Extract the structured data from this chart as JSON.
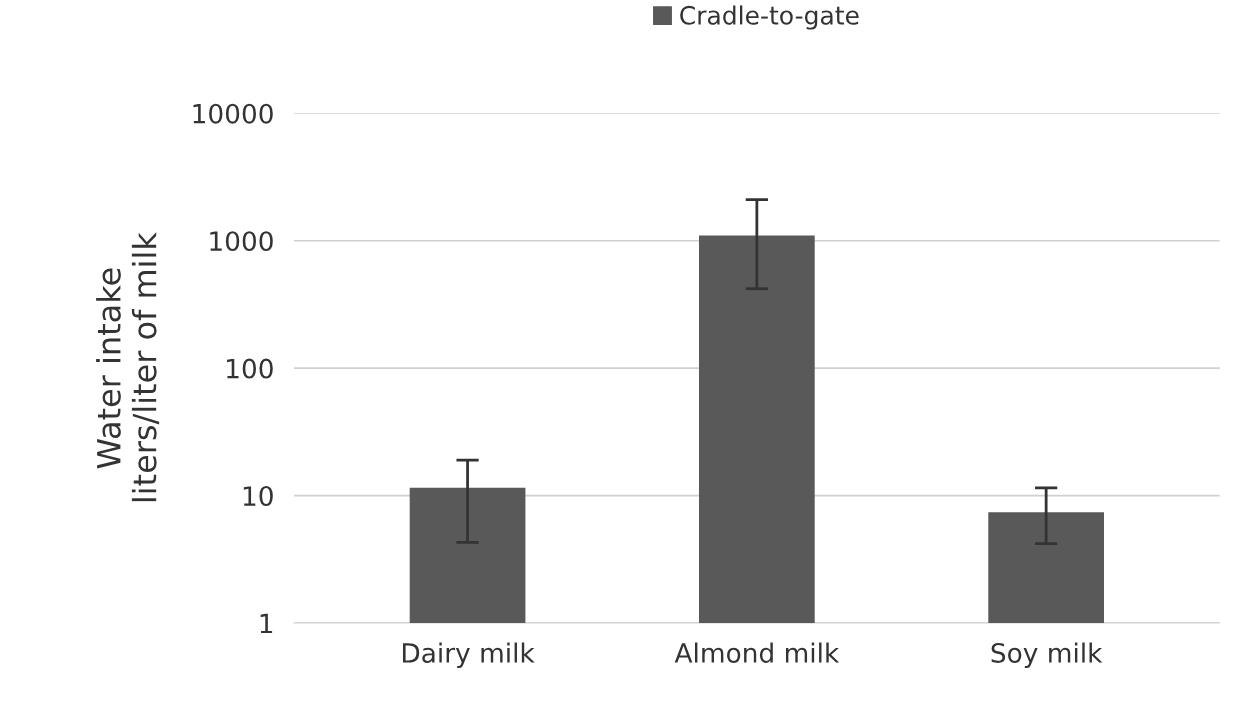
{
  "chart_data": {
    "type": "bar",
    "ylabel": "Water intake\nliters/liter of milk",
    "categories": [
      "Dairy milk",
      "Almond milk",
      "Soy milk"
    ],
    "series": [
      {
        "name": "Cradle-to-gate",
        "color": "#595959",
        "values": [
          11.5,
          1100,
          7.4
        ],
        "errors": [
          [
            4.3,
            19
          ],
          [
            420,
            2100
          ],
          [
            4.2,
            11.5
          ]
        ]
      }
    ],
    "log": true,
    "ylim": [
      1,
      10000
    ],
    "yticks": [
      1,
      10,
      100,
      1000,
      10000
    ],
    "grid": "y",
    "legend": "top"
  }
}
